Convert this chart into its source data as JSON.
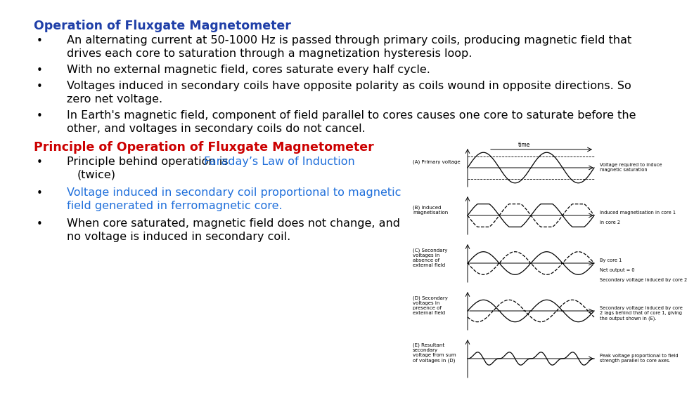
{
  "bg_color": "#ffffff",
  "title1": "Operation of Fluxgate Magnetometer",
  "title1_color": "#1f3fa8",
  "bullets1": [
    [
      "An alternating current at 50-1000 Hz is passed through primary coils, producing magnetic field that",
      "drives each core to saturation through a magnetization hysteresis loop."
    ],
    [
      "With no external magnetic field, cores saturate every half cycle."
    ],
    [
      "Voltages induced in secondary coils have opposite polarity as coils wound in opposite directions. So",
      "zero net voltage."
    ],
    [
      "In Earth's magnetic field, component of field parallel to cores causes one core to saturate before the",
      "other, and voltages in secondary coils do not cancel."
    ]
  ],
  "title2": "Principle of Operation of Fluxgate Magnetometer",
  "title2_color": "#cc0000",
  "bullet3_plain": "Principle behind operation is ",
  "bullet3_colored": "Faraday’s Law of Induction",
  "bullet3_color": "#1f6fdb",
  "bullet3_end": "\n(twice)",
  "bullet4_text": "Voltage induced in secondary coil proportional to magnetic\nfield generated in ferromagnetic core.",
  "bullet4_color": "#1f6fdb",
  "bullet5_text": "When core saturated, magnetic field does not change, and\nno voltage is induced in secondary coil.",
  "bullet5_color": "#000000",
  "text_fontsize": 11.5,
  "title_fontsize": 12.5,
  "bullet_symbol": "•",
  "panel_labels": [
    "(A) Primary voltage",
    "(B) Induced\nmagnetisation",
    "(C) Secondary\nvoltages in\nabsence of\nexternal field",
    "(D) Secondary\nvoltages in\npresence of\nexternal field",
    "(E) Resultant\nsecondary\nvoltage from sum\nof voltages in (D)"
  ],
  "right_labels": [
    "Voltage required to induce\nmagnetic saturation",
    "Induced magnetisation in core 1\n\nin core 2",
    "By core 1\n\nNet output = 0\n\nSecondary voltage induced by core 2",
    "Secondary voltage induced by core\n2 lags behind that of core 1, giving\nthe output shown in (E).",
    "Peak voltage proportional to field\nstrength parallel to core axes."
  ]
}
